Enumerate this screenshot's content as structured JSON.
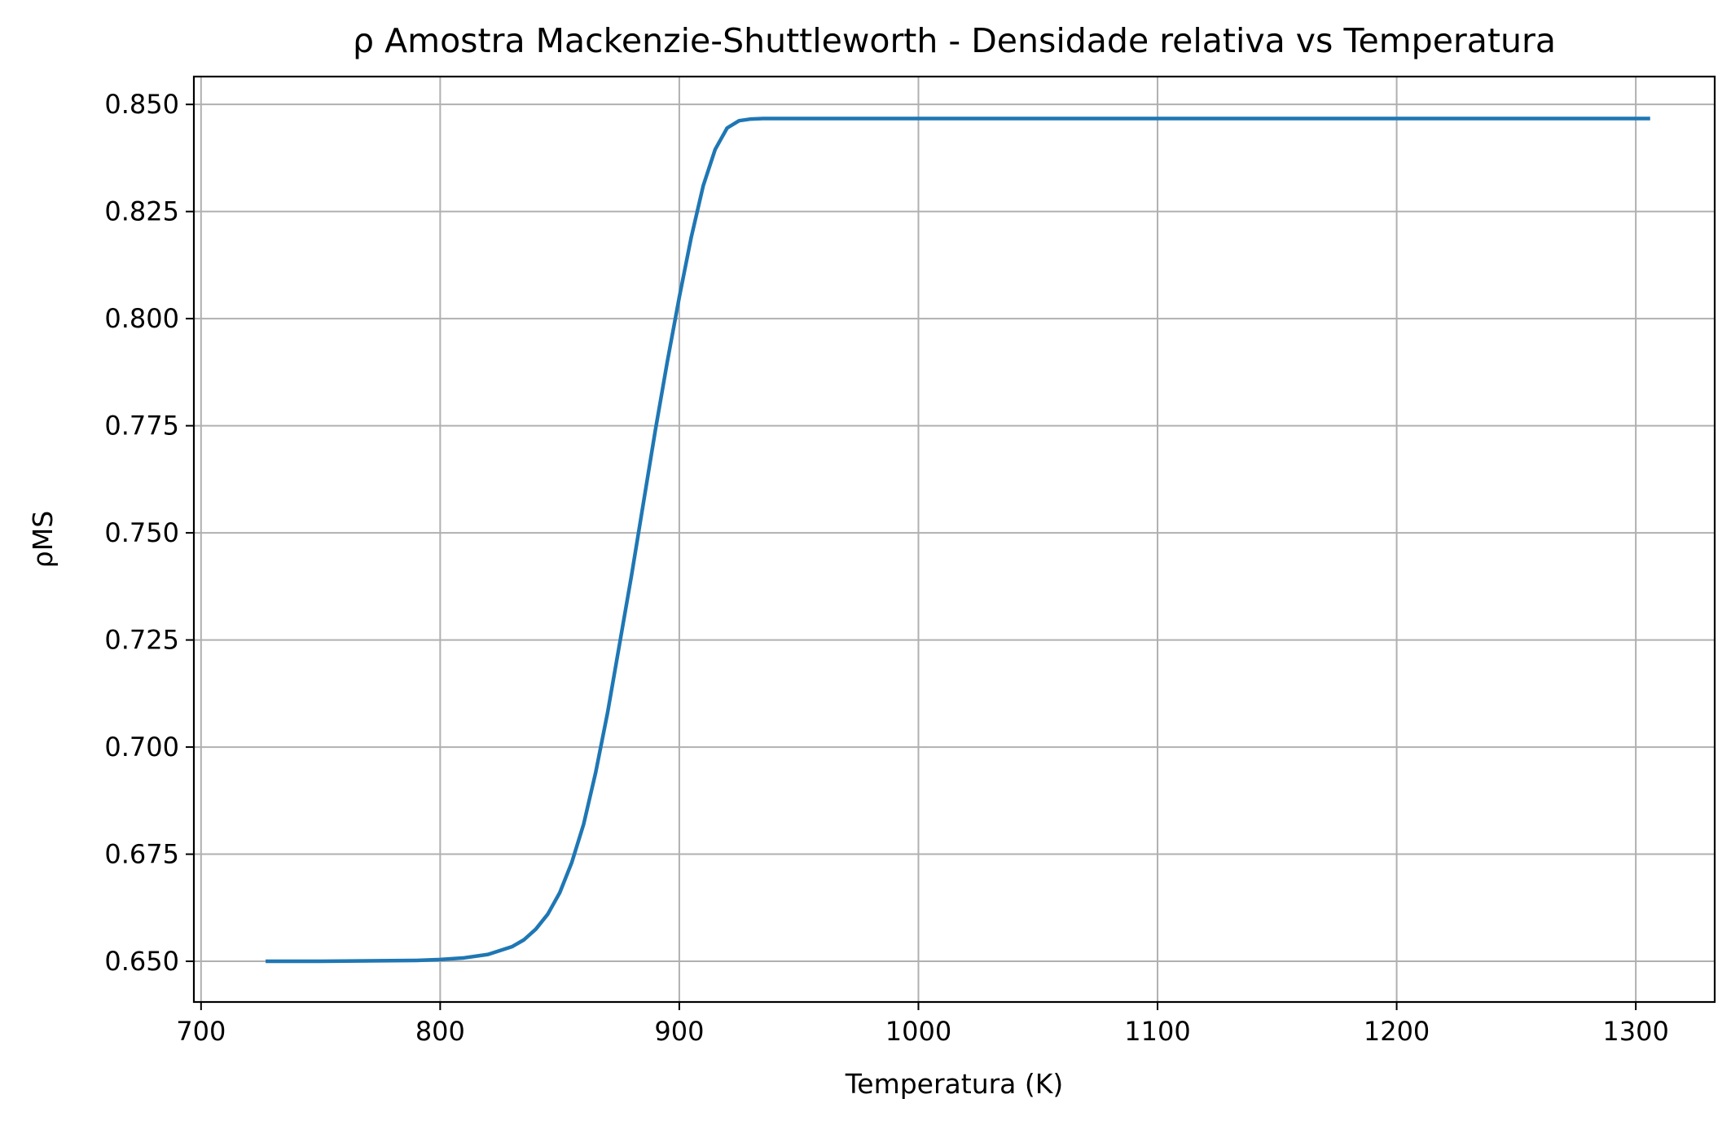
{
  "chart_data": {
    "type": "line",
    "title": "ρ Amostra Mackenzie-Shuttleworth - Densidade relativa vs Temperatura",
    "xlabel": "Temperatura (K)",
    "ylabel": "ρMS",
    "xlim": [
      697,
      1333
    ],
    "ylim": [
      0.6405,
      0.8565
    ],
    "xticks": [
      700,
      800,
      900,
      1000,
      1100,
      1200,
      1300
    ],
    "xtick_labels": [
      "700",
      "800",
      "900",
      "1000",
      "1100",
      "1200",
      "1300"
    ],
    "yticks": [
      0.65,
      0.675,
      0.7,
      0.725,
      0.75,
      0.775,
      0.8,
      0.825,
      0.85
    ],
    "ytick_labels": [
      "0.650",
      "0.675",
      "0.700",
      "0.725",
      "0.750",
      "0.775",
      "0.800",
      "0.825",
      "0.850"
    ],
    "grid": true,
    "colors": {
      "line": "#1f77b4",
      "grid": "#b0b0b0",
      "axes": "#000000"
    },
    "series": [
      {
        "x": [
          727,
          750,
          770,
          790,
          800,
          810,
          820,
          830,
          835,
          840,
          845,
          850,
          855,
          860,
          865,
          870,
          875,
          880,
          885,
          890,
          895,
          900,
          905,
          910,
          915,
          920,
          925,
          930,
          935,
          940,
          1000,
          1100,
          1200,
          1306
        ],
        "y": [
          0.65,
          0.65,
          0.6501,
          0.6502,
          0.6504,
          0.6508,
          0.6516,
          0.6534,
          0.655,
          0.6575,
          0.661,
          0.666,
          0.673,
          0.682,
          0.694,
          0.708,
          0.724,
          0.74,
          0.757,
          0.774,
          0.79,
          0.805,
          0.819,
          0.831,
          0.8395,
          0.8445,
          0.8462,
          0.8466,
          0.8467,
          0.8467,
          0.8467,
          0.8467,
          0.8467,
          0.8467
        ]
      }
    ]
  }
}
